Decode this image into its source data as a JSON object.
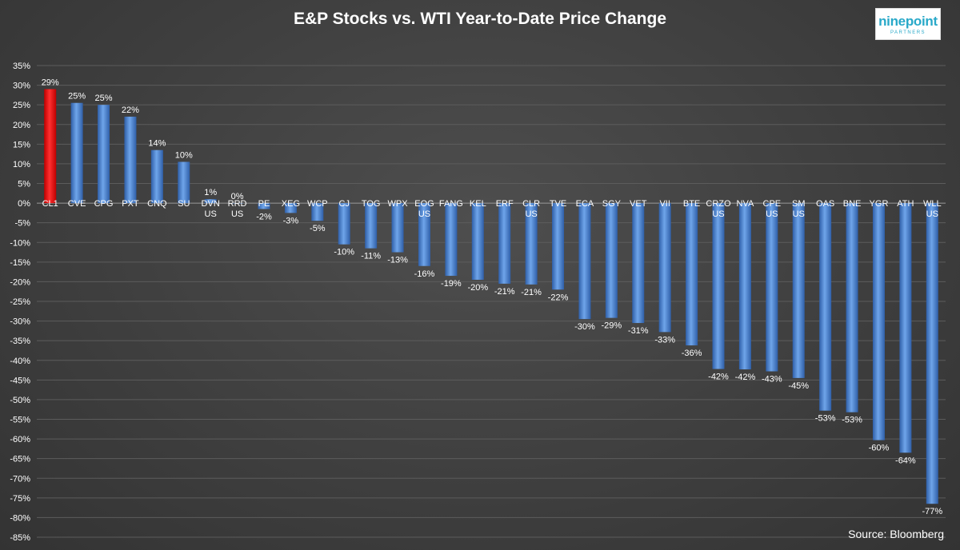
{
  "chart_data": {
    "type": "bar",
    "title": "E&P Stocks vs. WTI Year-to-Date Price Change",
    "categories": [
      [
        "CL1"
      ],
      [
        "CVE"
      ],
      [
        "CPG"
      ],
      [
        "PXT"
      ],
      [
        "CNQ"
      ],
      [
        "SU"
      ],
      [
        "DVN",
        "US"
      ],
      [
        "RRD",
        "US"
      ],
      [
        "PE"
      ],
      [
        "XEG"
      ],
      [
        "WCP"
      ],
      [
        "CJ"
      ],
      [
        "TOG"
      ],
      [
        "WPX"
      ],
      [
        "EOG",
        "US"
      ],
      [
        "FANG"
      ],
      [
        "KEL"
      ],
      [
        "ERF"
      ],
      [
        "CLR",
        "US"
      ],
      [
        "TVE"
      ],
      [
        "ECA"
      ],
      [
        "SGY"
      ],
      [
        "VET"
      ],
      [
        "VII"
      ],
      [
        "BTE"
      ],
      [
        "CRZO",
        "US"
      ],
      [
        "NVA"
      ],
      [
        "CPE",
        "US"
      ],
      [
        "SM",
        "US"
      ],
      [
        "OAS"
      ],
      [
        "BNE"
      ],
      [
        "YGR"
      ],
      [
        "ATH"
      ],
      [
        "WLL",
        "US"
      ]
    ],
    "values": [
      29,
      25.5,
      25,
      22,
      13.5,
      10.5,
      1,
      0,
      -1.5,
      -2.5,
      -4.5,
      -10.5,
      -11.5,
      -12.5,
      -16,
      -18.5,
      -19.5,
      -20.5,
      -20.7,
      -22,
      -29.5,
      -29.2,
      -30.5,
      -32.8,
      -36.2,
      -42.2,
      -42.3,
      -42.8,
      -44.5,
      -52.8,
      -53.2,
      -60.3,
      -63.5,
      -76.5
    ],
    "value_labels": [
      "29%",
      "25%",
      "25%",
      "22%",
      "14%",
      "10%",
      "1%",
      "0%",
      "-2%",
      "-3%",
      "-5%",
      "-10%",
      "-11%",
      "-13%",
      "-16%",
      "-19%",
      "-20%",
      "-21%",
      "-21%",
      "-22%",
      "-30%",
      "-29%",
      "-31%",
      "-33%",
      "-36%",
      "-42%",
      "-42%",
      "-43%",
      "-45%",
      "-53%",
      "-53%",
      "-60%",
      "-64%",
      "-77%"
    ],
    "highlight_index": 0,
    "colors": {
      "bar": "#4a86d2",
      "highlight": "#ff1a1a"
    },
    "ylim": [
      -85,
      35
    ],
    "yticks": [
      35,
      30,
      25,
      20,
      15,
      10,
      5,
      0,
      -5,
      -10,
      -15,
      -20,
      -25,
      -30,
      -35,
      -40,
      -45,
      -50,
      -55,
      -60,
      -65,
      -70,
      -75,
      -80,
      -85
    ],
    "ytick_suffix": "%",
    "grid": true,
    "legend": "none"
  },
  "logo": {
    "main": "ninepoint",
    "sub": "PARTNERS"
  },
  "source": "Source: Bloomberg"
}
